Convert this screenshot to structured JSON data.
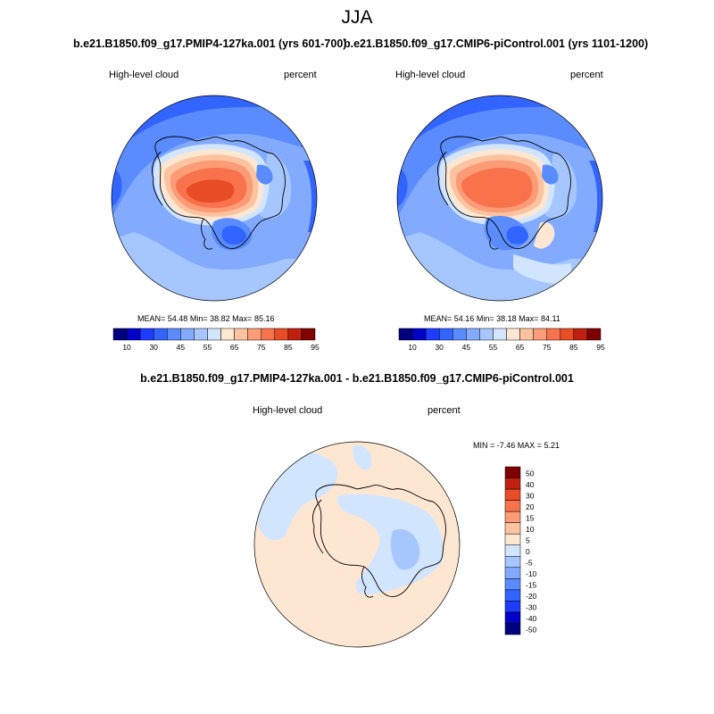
{
  "figure": {
    "title": "JJA"
  },
  "panels": [
    {
      "subtitle": "b.e21.B1850.f09_g17.PMIP4-127ka.001 (yrs 601-700)",
      "left_label": "High-level cloud",
      "right_label": "percent",
      "stats": {
        "mean_label": "MEAN=",
        "mean": "54.48",
        "min_label": "Min=",
        "min": "38.82",
        "max_label": "Max=",
        "max": "85.16"
      }
    },
    {
      "subtitle": "b.e21.B1850.f09_g17.CMIP6-piControl.001 (yrs 1101-1200)",
      "left_label": "High-level cloud",
      "right_label": "percent",
      "stats": {
        "mean_label": "MEAN=",
        "mean": "54.16",
        "min_label": "Min=",
        "min": "38.18",
        "max_label": "Max=",
        "max": "84.11"
      }
    },
    {
      "subtitle": "b.e21.B1850.f09_g17.PMIP4-127ka.001 - b.e21.B1850.f09_g17.CMIP6-piControl.001",
      "left_label": "High-level cloud",
      "right_label": "percent",
      "stats_text": "MIN =  -7.46 MAX =   5.21"
    }
  ],
  "colorbar_main": {
    "colors": [
      "#00007f",
      "#0000c8",
      "#1e3cff",
      "#3264ff",
      "#5a8cff",
      "#82aaff",
      "#a5c6ff",
      "#d2e5ff",
      "#fee7d2",
      "#fdc3a0",
      "#fc9c76",
      "#f8724c",
      "#e84d26",
      "#c0200d",
      "#7f0000"
    ],
    "tick_labels": [
      "10",
      "30",
      "45",
      "55",
      "65",
      "75",
      "85",
      "95"
    ]
  },
  "colorbar_diff": {
    "colors": [
      "#00007f",
      "#0000c8",
      "#1e3cff",
      "#3264ff",
      "#5a8cff",
      "#82aaff",
      "#a5c6ff",
      "#d2e5ff",
      "#fee7d2",
      "#fdc3a0",
      "#fc9c76",
      "#f8724c",
      "#e84d26",
      "#c0200d",
      "#7f0000"
    ],
    "tick_labels": [
      "50",
      "40",
      "30",
      "20",
      "15",
      "10",
      "5",
      "0",
      "-5",
      "-10",
      "-15",
      "-20",
      "-30",
      "-40",
      "-50"
    ]
  },
  "map_colors": {
    "c35": "#3264ff",
    "c40": "#5a8cff",
    "c45": "#82aaff",
    "c50": "#a5c6ff",
    "c55": "#d2e5ff",
    "c60": "#fee7d2",
    "c65": "#fdc3a0",
    "c70": "#fc9c76",
    "c75": "#f8724c",
    "c80": "#e84d26",
    "diff_pos": "#fee7d2",
    "diff_neg": "#d2e5ff",
    "diff_neg2": "#a5c6ff",
    "coast": "#000000"
  }
}
